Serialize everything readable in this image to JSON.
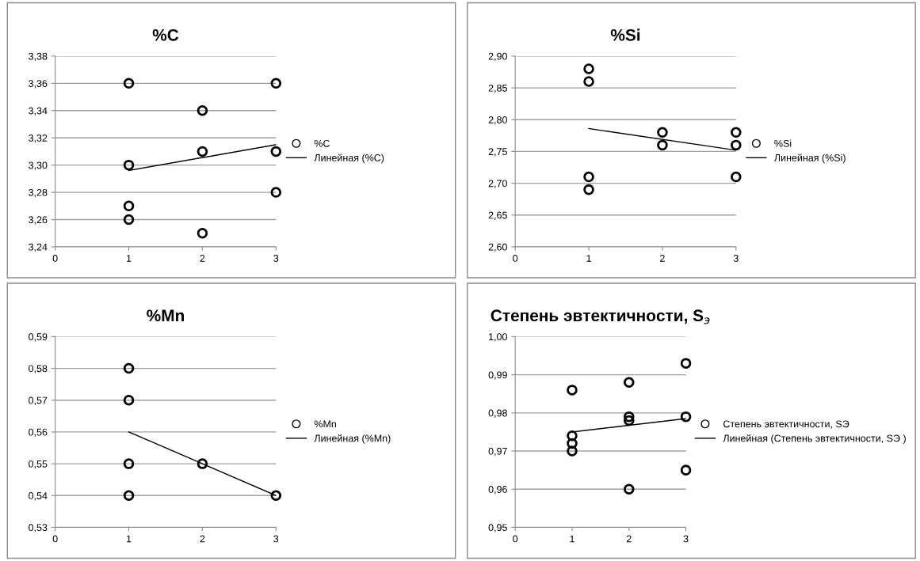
{
  "chart_data": [
    {
      "type": "scatter",
      "title": "%C",
      "xlim": [
        0,
        3
      ],
      "xticks": [
        0,
        1,
        2,
        3
      ],
      "ylim": [
        3.24,
        3.38
      ],
      "yticks": [
        {
          "value": 3.24,
          "label": "3,24"
        },
        {
          "value": 3.26,
          "label": "3,26"
        },
        {
          "value": 3.28,
          "label": "3,28"
        },
        {
          "value": 3.3,
          "label": "3,30"
        },
        {
          "value": 3.32,
          "label": "3,32"
        },
        {
          "value": 3.34,
          "label": "3,34"
        },
        {
          "value": 3.36,
          "label": "3,36"
        },
        {
          "value": 3.38,
          "label": "3,38"
        }
      ],
      "grid": "y",
      "legend": "right",
      "marker": "circle",
      "series": [
        {
          "name": "%C",
          "color": "#000000",
          "x": [
            1,
            1,
            1,
            1,
            2,
            2,
            2,
            3,
            3,
            3
          ],
          "values": [
            3.36,
            3.3,
            3.27,
            3.26,
            3.34,
            3.31,
            3.25,
            3.36,
            3.31,
            3.28
          ]
        },
        {
          "name": "Линейная (%C)",
          "type": "line",
          "marker": "none",
          "color": "#000000",
          "x": [
            1,
            3
          ],
          "values": [
            3.296,
            3.315
          ]
        }
      ]
    },
    {
      "type": "scatter",
      "title": "%Si",
      "xlim": [
        0,
        3
      ],
      "xticks": [
        0,
        1,
        2,
        3
      ],
      "ylim": [
        2.6,
        2.9
      ],
      "yticks": [
        {
          "value": 2.6,
          "label": "2,60"
        },
        {
          "value": 2.65,
          "label": "2,65"
        },
        {
          "value": 2.7,
          "label": "2,70"
        },
        {
          "value": 2.75,
          "label": "2,75"
        },
        {
          "value": 2.8,
          "label": "2,80"
        },
        {
          "value": 2.85,
          "label": "2,85"
        },
        {
          "value": 2.9,
          "label": "2,90"
        }
      ],
      "grid": "y",
      "legend": "right",
      "marker": "circle",
      "series": [
        {
          "name": "%Si",
          "color": "#000000",
          "x": [
            1,
            1,
            1,
            1,
            2,
            2,
            3,
            3,
            3
          ],
          "values": [
            2.88,
            2.86,
            2.71,
            2.69,
            2.78,
            2.76,
            2.78,
            2.76,
            2.71
          ]
        },
        {
          "name": "Линейная (%Si)",
          "type": "line",
          "marker": "none",
          "color": "#000000",
          "x": [
            1,
            3
          ],
          "values": [
            2.786,
            2.752
          ]
        }
      ]
    },
    {
      "type": "scatter",
      "title": "%Mn",
      "xlim": [
        0,
        3
      ],
      "xticks": [
        0,
        1,
        2,
        3
      ],
      "ylim": [
        0.53,
        0.59
      ],
      "yticks": [
        {
          "value": 0.53,
          "label": "0,53"
        },
        {
          "value": 0.54,
          "label": "0,54"
        },
        {
          "value": 0.55,
          "label": "0,55"
        },
        {
          "value": 0.56,
          "label": "0,56"
        },
        {
          "value": 0.57,
          "label": "0,57"
        },
        {
          "value": 0.58,
          "label": "0,58"
        },
        {
          "value": 0.59,
          "label": "0,59"
        }
      ],
      "grid": "y",
      "legend": "right",
      "marker": "circle",
      "series": [
        {
          "name": "%Mn",
          "color": "#000000",
          "x": [
            1,
            1,
            1,
            1,
            2,
            3
          ],
          "values": [
            0.58,
            0.57,
            0.55,
            0.54,
            0.55,
            0.54
          ]
        },
        {
          "name": "Линейная (%Mn)",
          "type": "line",
          "marker": "none",
          "color": "#000000",
          "x": [
            1,
            3
          ],
          "values": [
            0.56,
            0.54
          ]
        }
      ]
    },
    {
      "type": "scatter",
      "title": "Степень эвтектичности, S$_{э}$",
      "xlim": [
        0,
        3
      ],
      "xticks": [
        0,
        1,
        2,
        3
      ],
      "ylim": [
        0.95,
        1.0
      ],
      "yticks": [
        {
          "value": 0.95,
          "label": "0,95"
        },
        {
          "value": 0.96,
          "label": "0,96"
        },
        {
          "value": 0.97,
          "label": "0,97"
        },
        {
          "value": 0.98,
          "label": "0,98"
        },
        {
          "value": 0.99,
          "label": "0,99"
        },
        {
          "value": 1.0,
          "label": "1,00"
        }
      ],
      "grid": "y",
      "legend": "right",
      "marker": "circle",
      "series": [
        {
          "name": "Степень эвтектичности, SЭ",
          "color": "#000000",
          "x": [
            1,
            1,
            1,
            1,
            2,
            2,
            2,
            2,
            3,
            3,
            3
          ],
          "values": [
            0.986,
            0.974,
            0.972,
            0.97,
            0.988,
            0.979,
            0.978,
            0.96,
            0.993,
            0.979,
            0.965
          ]
        },
        {
          "name": "Линейная (Степень эвтектичности, SЭ )",
          "type": "line",
          "marker": "none",
          "color": "#000000",
          "x": [
            1,
            3
          ],
          "values": [
            0.975,
            0.9785
          ]
        }
      ]
    }
  ]
}
